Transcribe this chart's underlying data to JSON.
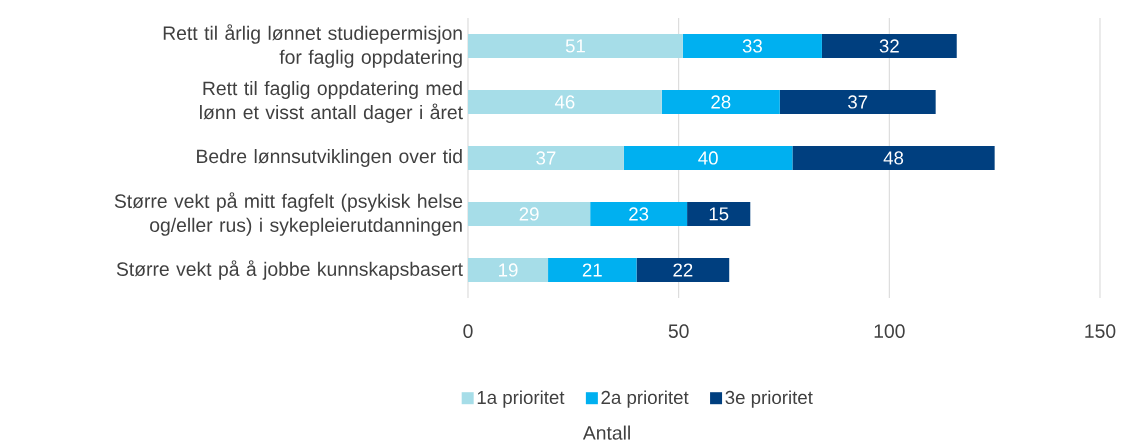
{
  "chart_data": {
    "type": "bar",
    "orientation": "horizontal",
    "stacked": true,
    "xlabel": "Antall",
    "categories": [
      "Rett til årlig lønnet studiepermisjon for faglig oppdatering",
      "Rett til faglig oppdatering med lønn et visst antall dager i året",
      "Bedre lønnsutviklingen over tid",
      "Større vekt på mitt fagfelt (psykisk helse og/eller rus) i sykepleierutdanningen",
      "Større vekt på å jobbe kunnskapsbasert"
    ],
    "series": [
      {
        "name": "1a prioritet",
        "color": "#a6dde8",
        "values": [
          51,
          46,
          37,
          29,
          19
        ]
      },
      {
        "name": "2a prioritet",
        "color": "#00b0f0",
        "values": [
          33,
          28,
          40,
          23,
          21
        ]
      },
      {
        "name": "3e prioritet",
        "color": "#003f7f",
        "values": [
          32,
          37,
          48,
          15,
          22
        ]
      }
    ],
    "xlim": [
      0,
      150
    ],
    "xticks": [
      0,
      50,
      100,
      150
    ],
    "grid": "x",
    "legend": "bottom",
    "data_labels": true
  }
}
